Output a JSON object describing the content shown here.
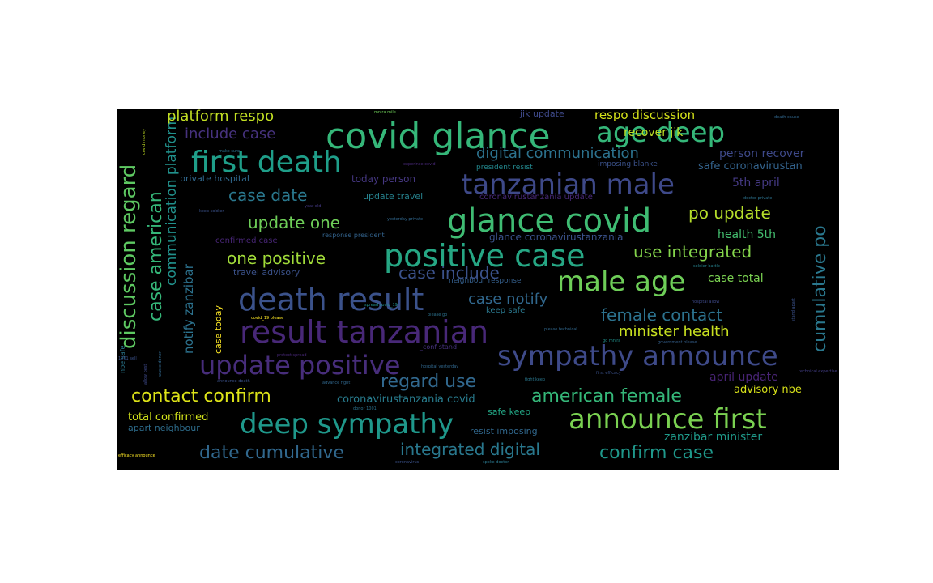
{
  "words": [
    {
      "text": "covid glance",
      "color": "#35b779"
    },
    {
      "text": "first death",
      "color": "#1f9e89"
    },
    {
      "text": "tanzanian male",
      "color": "#3e4989"
    },
    {
      "text": "age deep",
      "color": "#35b779"
    },
    {
      "text": "glance covid",
      "color": "#3fbc73"
    },
    {
      "text": "positive case",
      "color": "#26a784"
    },
    {
      "text": "male age",
      "color": "#6ece58"
    },
    {
      "text": "death result",
      "color": "#3b528b"
    },
    {
      "text": "result tanzanian",
      "color": "#482878"
    },
    {
      "text": "sympathy announce",
      "color": "#3e4a89"
    },
    {
      "text": "update positive",
      "color": "#472d7b"
    },
    {
      "text": "deep sympathy",
      "color": "#1f988b"
    },
    {
      "text": "announce first",
      "color": "#7ad151"
    },
    {
      "text": "discussion regard",
      "color": "#5ec962"
    },
    {
      "text": "case american",
      "color": "#35b779"
    },
    {
      "text": "cumulative po",
      "color": "#2a788e"
    },
    {
      "text": "platform respo",
      "color": "#c2df23"
    },
    {
      "text": "include case",
      "color": "#46327e"
    },
    {
      "text": "digital communication",
      "color": "#2c728e"
    },
    {
      "text": "case date",
      "color": "#2a788e"
    },
    {
      "text": "update one",
      "color": "#6ece58"
    },
    {
      "text": "po update",
      "color": "#b5de2b"
    },
    {
      "text": "one positive",
      "color": "#a0da39"
    },
    {
      "text": "use integrated",
      "color": "#84d44b"
    },
    {
      "text": "case include",
      "color": "#3b528b"
    },
    {
      "text": "case notify",
      "color": "#31688e"
    },
    {
      "text": "female contact",
      "color": "#2c728e"
    },
    {
      "text": "minister health",
      "color": "#c8e020"
    },
    {
      "text": "regard use",
      "color": "#31688e"
    },
    {
      "text": "contact confirm",
      "color": "#dde318"
    },
    {
      "text": "american female",
      "color": "#35b779"
    },
    {
      "text": "integrated digital",
      "color": "#29788e"
    },
    {
      "text": "date cumulative",
      "color": "#31688e"
    },
    {
      "text": "confirm case",
      "color": "#1f988b"
    },
    {
      "text": "communication platform",
      "color": "#21918c"
    },
    {
      "text": "notify zanzibar",
      "color": "#2c728e"
    },
    {
      "text": "respo discussion",
      "color": "#d5e21a"
    },
    {
      "text": "recover jik",
      "color": "#bddf26"
    },
    {
      "text": "person recover",
      "color": "#3e4989"
    },
    {
      "text": "safe coronavirustan",
      "color": "#33638d"
    },
    {
      "text": "5th april",
      "color": "#443983"
    },
    {
      "text": "health 5th",
      "color": "#44bf70"
    },
    {
      "text": "case total",
      "color": "#7ad151"
    },
    {
      "text": "april update",
      "color": "#482475"
    },
    {
      "text": "advisory nbe",
      "color": "#d8e219"
    },
    {
      "text": "zanzibar minister",
      "color": "#1f9a8a"
    },
    {
      "text": "total confirmed",
      "color": "#d2e21b"
    },
    {
      "text": "apart neighbour",
      "color": "#2e6e8e"
    },
    {
      "text": "coronavirustanzania covid",
      "color": "#287c8e"
    },
    {
      "text": "safe keep",
      "color": "#22a785"
    },
    {
      "text": "resist imposing",
      "color": "#31688e"
    },
    {
      "text": "glance coronavirustanzania",
      "color": "#3b528b"
    },
    {
      "text": "case today",
      "color": "#fde725"
    },
    {
      "text": "update travel",
      "color": "#26828e"
    },
    {
      "text": "private hospital",
      "color": "#31688e"
    },
    {
      "text": "today person",
      "color": "#453781"
    },
    {
      "text": "confirmed case",
      "color": "#482677"
    },
    {
      "text": "travel advisory",
      "color": "#3b528b"
    },
    {
      "text": "response president",
      "color": "#33638d"
    },
    {
      "text": "neighbour response",
      "color": "#35608d"
    },
    {
      "text": "keep safe",
      "color": "#2a788e"
    },
    {
      "text": "president resist",
      "color": "#23888e"
    },
    {
      "text": "imposing blanke",
      "color": "#3b528b"
    },
    {
      "text": "jik update",
      "color": "#3e4989"
    },
    {
      "text": "coronavirustanzania update",
      "color": "#482878"
    },
    {
      "text": "nbe safe",
      "color": "#2a788e"
    },
    {
      "text": "_conf stand",
      "color": "#46327e"
    },
    {
      "text": "death cause",
      "color": "#31688e"
    },
    {
      "text": "make sure",
      "color": "#2c728e"
    },
    {
      "text": "covid money",
      "color": "#c2df23"
    },
    {
      "text": "mnira mile",
      "color": "#6ece58"
    },
    {
      "text": "experince covid",
      "color": "#482878"
    },
    {
      "text": "yesterday private",
      "color": "#31688e"
    },
    {
      "text": "keep soldier",
      "color": "#3b528b"
    },
    {
      "text": "year old",
      "color": "#443983"
    },
    {
      "text": "doctor private",
      "color": "#2c728e"
    },
    {
      "text": "soldier battle",
      "color": "#26828e"
    },
    {
      "text": "hospital allow",
      "color": "#3e4989"
    },
    {
      "text": "stand apart",
      "color": "#3b528b"
    },
    {
      "text": "please go",
      "color": "#2c728e"
    },
    {
      "text": "please technical",
      "color": "#31688e"
    },
    {
      "text": "go mnira",
      "color": "#21918c"
    },
    {
      "text": "government please",
      "color": "#35608d"
    },
    {
      "text": "first efficacy",
      "color": "#3b528b"
    },
    {
      "text": "technical expertise",
      "color": "#433e85"
    },
    {
      "text": "fight keep",
      "color": "#2a788e"
    },
    {
      "text": "hospital yesterday",
      "color": "#31688e"
    },
    {
      "text": "protect spread",
      "color": "#482878"
    },
    {
      "text": "covid_19 please",
      "color": "#fde725"
    },
    {
      "text": "spread covid_19",
      "color": "#21918c"
    },
    {
      "text": "announce death",
      "color": "#3b528b"
    },
    {
      "text": "advance fight",
      "color": "#31688e"
    },
    {
      "text": "donor 1001",
      "color": "#2c728e"
    },
    {
      "text": "allow best",
      "color": "#3e4989"
    },
    {
      "text": "efficacy announce",
      "color": "#fde725"
    },
    {
      "text": "coronavirus",
      "color": "#3b528b"
    },
    {
      "text": "spoke doctor",
      "color": "#2a788e"
    },
    {
      "text": "waste donor",
      "color": "#31688e"
    },
    {
      "text": "1001 sell",
      "color": "#3b528b"
    }
  ]
}
